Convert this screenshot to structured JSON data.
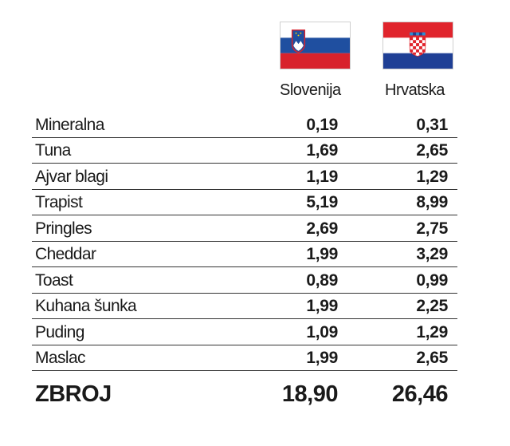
{
  "columns": {
    "slovenia": {
      "label": "Slovenija",
      "flag": "slovenia-flag-icon",
      "colors": [
        "#ffffff",
        "#1f4fa0",
        "#d8222c"
      ]
    },
    "croatia": {
      "label": "Hrvatska",
      "flag": "croatia-flag-icon",
      "colors": [
        "#e0242c",
        "#ffffff",
        "#1f3f95"
      ]
    }
  },
  "rows": [
    {
      "label": "Mineralna",
      "slovenia": "0,19",
      "croatia": "0,31"
    },
    {
      "label": "Tuna",
      "slovenia": "1,69",
      "croatia": "2,65"
    },
    {
      "label": "Ajvar blagi",
      "slovenia": "1,19",
      "croatia": "1,29"
    },
    {
      "label": "Trapist",
      "slovenia": "5,19",
      "croatia": "8,99"
    },
    {
      "label": "Pringles",
      "slovenia": "2,69",
      "croatia": "2,75"
    },
    {
      "label": "Cheddar",
      "slovenia": "1,99",
      "croatia": "3,29"
    },
    {
      "label": "Toast",
      "slovenia": "0,89",
      "croatia": "0,99"
    },
    {
      "label": "Kuhana šunka",
      "slovenia": "1,99",
      "croatia": "2,25"
    },
    {
      "label": "Puding",
      "slovenia": "1,09",
      "croatia": "1,29"
    },
    {
      "label": "Maslac",
      "slovenia": "1,99",
      "croatia": "2,65"
    }
  ],
  "total": {
    "label": "ZBROJ",
    "slovenia": "18,90",
    "croatia": "26,46"
  }
}
